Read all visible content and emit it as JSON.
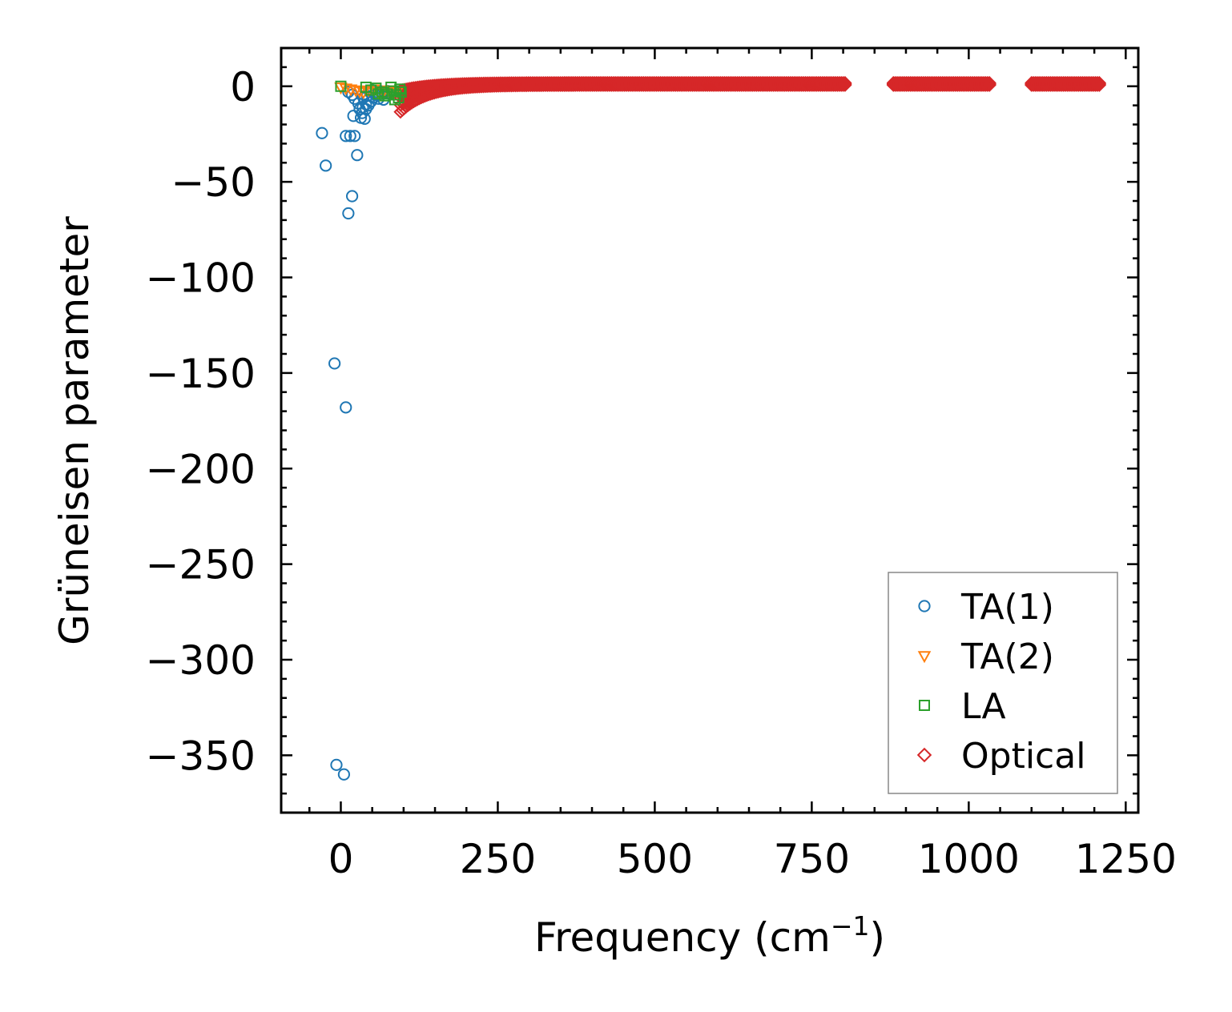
{
  "chart_data": {
    "type": "scatter",
    "xlabel": "Frequency (cm",
    "xlabel_exp": "−1",
    "xlabel_close": ")",
    "ylabel": "Grüneisen parameter",
    "xlim": [
      -95,
      1270
    ],
    "ylim": [
      -380,
      20
    ],
    "x_ticks": [
      0,
      250,
      500,
      750,
      1000,
      1250
    ],
    "x_tick_labels": [
      "0",
      "250",
      "500",
      "750",
      "1000",
      "1250"
    ],
    "y_ticks": [
      0,
      -50,
      -100,
      -150,
      -200,
      -250,
      -300,
      -350
    ],
    "y_tick_labels": [
      "0",
      "−50",
      "−100",
      "−150",
      "−200",
      "−250",
      "−300",
      "−350"
    ],
    "x_minor_step": 50,
    "y_minor_step": 10,
    "grid": false,
    "legend_position": "bottom-right",
    "series": [
      {
        "name": "TA(1)",
        "marker": "circle",
        "color": "#1f77b4",
        "points": [
          [
            -30,
            -24.5
          ],
          [
            -24,
            -41.5
          ],
          [
            -10,
            -145
          ],
          [
            8,
            -168
          ],
          [
            -7,
            -355
          ],
          [
            5,
            -360
          ],
          [
            8,
            -26
          ],
          [
            15,
            -26
          ],
          [
            22,
            -26
          ],
          [
            18,
            -57.5
          ],
          [
            12,
            -66.5
          ],
          [
            26,
            -36
          ],
          [
            12,
            -3
          ],
          [
            18,
            -4.5
          ],
          [
            22,
            -6.5
          ],
          [
            28,
            -9
          ],
          [
            30,
            -12
          ],
          [
            34,
            -14
          ],
          [
            38,
            -17
          ],
          [
            20,
            -15.5
          ],
          [
            32,
            -16.5
          ],
          [
            40,
            -12
          ],
          [
            44,
            -10
          ],
          [
            48,
            -8
          ],
          [
            52,
            -6
          ],
          [
            55,
            -4.5
          ],
          [
            58,
            -3
          ],
          [
            62,
            -2.5
          ],
          [
            66,
            -4
          ],
          [
            70,
            -3.5
          ],
          [
            74,
            -2.5
          ],
          [
            78,
            -4
          ],
          [
            42,
            -5
          ],
          [
            46,
            -3
          ],
          [
            36,
            -6
          ],
          [
            50,
            -2
          ],
          [
            60,
            -6.5
          ],
          [
            68,
            -7
          ],
          [
            40,
            -9.5
          ],
          [
            35,
            -11
          ]
        ]
      },
      {
        "name": "TA(2)",
        "marker": "triangle",
        "color": "#ff7f0e",
        "points": [
          [
            0,
            -0.5
          ],
          [
            8,
            -1
          ],
          [
            16,
            -1.5
          ],
          [
            24,
            -2
          ],
          [
            30,
            -2.5
          ],
          [
            36,
            -3
          ],
          [
            44,
            -2
          ],
          [
            52,
            -1.5
          ],
          [
            60,
            -3
          ],
          [
            68,
            -2.5
          ],
          [
            76,
            -2
          ],
          [
            84,
            -3
          ],
          [
            90,
            -2.5
          ]
        ]
      },
      {
        "name": "LA",
        "marker": "square",
        "color": "#2ca02c",
        "points": [
          [
            0,
            0
          ],
          [
            40,
            -0.5
          ],
          [
            48,
            -2
          ],
          [
            56,
            -1
          ],
          [
            66,
            -3
          ],
          [
            74,
            -4
          ],
          [
            80,
            -0.5
          ],
          [
            84,
            -2.5
          ],
          [
            88,
            -4.5
          ],
          [
            92,
            -6
          ],
          [
            96,
            -3
          ],
          [
            70,
            -5
          ],
          [
            60,
            -4
          ],
          [
            86,
            -7
          ],
          [
            94,
            -1.5
          ]
        ]
      },
      {
        "name": "Optical",
        "marker": "diamond",
        "color": "#d62728",
        "band_segments": [
          [
            95,
            805
          ],
          [
            880,
            1035
          ],
          [
            1100,
            1210
          ]
        ]
      }
    ]
  }
}
